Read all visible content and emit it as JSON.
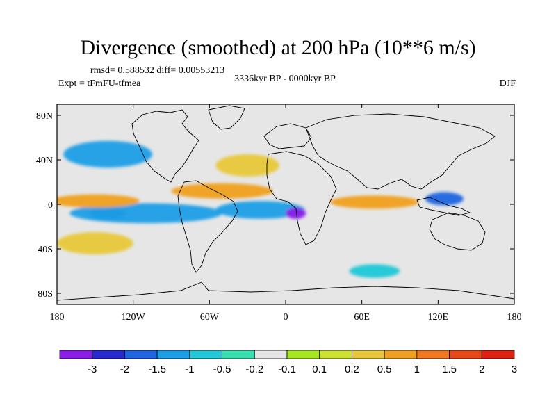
{
  "chart_data": {
    "type": "heatmap",
    "title": "Divergence (smoothed) at 200 hPa (10**6 m/s)",
    "stats": "rmsd= 0.588532 diff= 0.00553213",
    "period": "3336kyr BP - 0000kyr BP",
    "experiment": "Expt = tFmFU-tfmea",
    "season": "DJF",
    "xlim": [
      -180,
      180
    ],
    "ylim": [
      -90,
      90
    ],
    "x_ticks": [
      {
        "value": -180,
        "label": "180"
      },
      {
        "value": -120,
        "label": "120W"
      },
      {
        "value": -60,
        "label": "60W"
      },
      {
        "value": 0,
        "label": "0"
      },
      {
        "value": 60,
        "label": "60E"
      },
      {
        "value": 120,
        "label": "120E"
      },
      {
        "value": 180,
        "label": "180"
      }
    ],
    "y_ticks": [
      {
        "value": 80,
        "label": "80N"
      },
      {
        "value": 40,
        "label": "40N"
      },
      {
        "value": 0,
        "label": "0"
      },
      {
        "value": -40,
        "label": "40S"
      },
      {
        "value": -80,
        "label": "80S"
      }
    ],
    "colorbar": {
      "colors": [
        "#8a1ee8",
        "#2828d0",
        "#1e64e0",
        "#1a9ee6",
        "#20c8d8",
        "#38e0b0",
        "#e6e6e6",
        "#a6e620",
        "#cce030",
        "#e8c83a",
        "#f0a020",
        "#f07820",
        "#e84818",
        "#e02010"
      ],
      "labels": [
        "-3",
        "-2",
        "-1.5",
        "-1",
        "-0.5",
        "-0.2",
        "-0.1",
        "0.1",
        "0.2",
        "0.5",
        "1",
        "1.5",
        "2",
        "3"
      ]
    },
    "features": [
      {
        "name": "equatorial-west-pacific-convergence",
        "class": -1.5,
        "lon": -140,
        "lat": -8,
        "rlon": 14,
        "rlat": 6
      },
      {
        "name": "equatorial-central-pacific-convergence",
        "class": -1,
        "lon": -110,
        "lat": -8,
        "rlon": 60,
        "rlat": 9
      },
      {
        "name": "atlantic-equatorial-convergence",
        "class": -1,
        "lon": -20,
        "lat": -5,
        "rlon": 35,
        "rlat": 8
      },
      {
        "name": "central-africa-convergence",
        "class": -3,
        "lon": 8,
        "lat": -8,
        "rlon": 8,
        "rlat": 5
      },
      {
        "name": "indonesia-convergence",
        "class": -1.5,
        "lon": 125,
        "lat": 5,
        "rlon": 15,
        "rlat": 6
      },
      {
        "name": "north-pacific-divergence-band",
        "class": 1,
        "lon": -150,
        "lat": 3,
        "rlon": 35,
        "rlat": 6
      },
      {
        "name": "south-america-divergence",
        "class": 1,
        "lon": -50,
        "lat": 12,
        "rlon": 40,
        "rlat": 7
      },
      {
        "name": "indian-ocean-divergence",
        "class": 1,
        "lon": 70,
        "lat": 2,
        "rlon": 35,
        "rlat": 6
      },
      {
        "name": "north-pacific-convergence",
        "class": -1,
        "lon": -140,
        "lat": 45,
        "rlon": 35,
        "rlat": 12
      },
      {
        "name": "north-atlantic-divergence",
        "class": 0.5,
        "lon": -30,
        "lat": 35,
        "rlon": 25,
        "rlat": 10
      },
      {
        "name": "south-pacific-divergence",
        "class": 0.5,
        "lon": -150,
        "lat": -35,
        "rlon": 30,
        "rlat": 10
      },
      {
        "name": "southern-ocean-convergence",
        "class": -0.5,
        "lon": 70,
        "lat": -60,
        "rlon": 20,
        "rlat": 6
      }
    ]
  }
}
